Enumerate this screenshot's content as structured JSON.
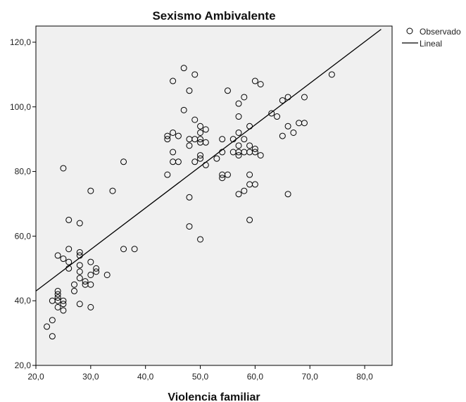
{
  "chart_data": {
    "type": "scatter",
    "title": "Sexismo Ambivalente",
    "xlabel": "Violencia familiar",
    "ylabel": "",
    "xlim": [
      20,
      85
    ],
    "ylim": [
      20,
      125
    ],
    "xticks": [
      "20,0",
      "30,0",
      "40,0",
      "50,0",
      "60,0",
      "70,0",
      "80,0"
    ],
    "xtick_values": [
      20,
      30,
      40,
      50,
      60,
      70,
      80
    ],
    "yticks": [
      "20,0",
      "40,0",
      "60,0",
      "80,0",
      "100,0",
      "120,0"
    ],
    "ytick_values": [
      20,
      40,
      60,
      80,
      100,
      120
    ],
    "grid": false,
    "legend": {
      "placement": "top-right",
      "entries": [
        {
          "label": "Observado",
          "marker": "circle"
        },
        {
          "label": "Lineal",
          "marker": "line"
        }
      ]
    },
    "colors": {
      "plot_background": "#f0f0f0",
      "marker": "#000000",
      "line": "#000000"
    },
    "series": [
      {
        "name": "Observado",
        "kind": "scatter",
        "points": [
          [
            22,
            32
          ],
          [
            23,
            29
          ],
          [
            23,
            34
          ],
          [
            23,
            40
          ],
          [
            24,
            38
          ],
          [
            24,
            40
          ],
          [
            24,
            41
          ],
          [
            24,
            42
          ],
          [
            24,
            43
          ],
          [
            24,
            54
          ],
          [
            25,
            37
          ],
          [
            25,
            39
          ],
          [
            25,
            40
          ],
          [
            25,
            53
          ],
          [
            25,
            81
          ],
          [
            26,
            50
          ],
          [
            26,
            52
          ],
          [
            26,
            56
          ],
          [
            26,
            65
          ],
          [
            27,
            43
          ],
          [
            27,
            45
          ],
          [
            28,
            39
          ],
          [
            28,
            47
          ],
          [
            28,
            49
          ],
          [
            28,
            51
          ],
          [
            28,
            54
          ],
          [
            28,
            55
          ],
          [
            28,
            64
          ],
          [
            29,
            45
          ],
          [
            29,
            46
          ],
          [
            30,
            38
          ],
          [
            30,
            45
          ],
          [
            30,
            48
          ],
          [
            30,
            52
          ],
          [
            30,
            74
          ],
          [
            31,
            49
          ],
          [
            31,
            50
          ],
          [
            33,
            48
          ],
          [
            34,
            74
          ],
          [
            36,
            56
          ],
          [
            36,
            83
          ],
          [
            38,
            56
          ],
          [
            44,
            79
          ],
          [
            44,
            90
          ],
          [
            44,
            91
          ],
          [
            45,
            83
          ],
          [
            45,
            86
          ],
          [
            45,
            92
          ],
          [
            45,
            108
          ],
          [
            46,
            83
          ],
          [
            46,
            91
          ],
          [
            47,
            99
          ],
          [
            47,
            112
          ],
          [
            48,
            63
          ],
          [
            48,
            72
          ],
          [
            48,
            88
          ],
          [
            48,
            90
          ],
          [
            48,
            105
          ],
          [
            49,
            83
          ],
          [
            49,
            90
          ],
          [
            49,
            96
          ],
          [
            49,
            110
          ],
          [
            50,
            59
          ],
          [
            50,
            84
          ],
          [
            50,
            85
          ],
          [
            50,
            89
          ],
          [
            50,
            90
          ],
          [
            50,
            92
          ],
          [
            50,
            94
          ],
          [
            51,
            82
          ],
          [
            51,
            89
          ],
          [
            51,
            93
          ],
          [
            53,
            84
          ],
          [
            54,
            78
          ],
          [
            54,
            79
          ],
          [
            54,
            86
          ],
          [
            54,
            90
          ],
          [
            55,
            79
          ],
          [
            55,
            105
          ],
          [
            56,
            86
          ],
          [
            56,
            90
          ],
          [
            57,
            73
          ],
          [
            57,
            85
          ],
          [
            57,
            86
          ],
          [
            57,
            88
          ],
          [
            57,
            92
          ],
          [
            57,
            97
          ],
          [
            57,
            101
          ],
          [
            58,
            74
          ],
          [
            58,
            86
          ],
          [
            58,
            90
          ],
          [
            58,
            103
          ],
          [
            59,
            65
          ],
          [
            59,
            76
          ],
          [
            59,
            79
          ],
          [
            59,
            86
          ],
          [
            59,
            88
          ],
          [
            59,
            94
          ],
          [
            60,
            76
          ],
          [
            60,
            86
          ],
          [
            60,
            87
          ],
          [
            60,
            108
          ],
          [
            61,
            85
          ],
          [
            61,
            107
          ],
          [
            63,
            98
          ],
          [
            64,
            97
          ],
          [
            65,
            91
          ],
          [
            65,
            102
          ],
          [
            66,
            73
          ],
          [
            66,
            94
          ],
          [
            66,
            103
          ],
          [
            67,
            92
          ],
          [
            68,
            95
          ],
          [
            69,
            95
          ],
          [
            69,
            103
          ],
          [
            74,
            110
          ]
        ]
      },
      {
        "name": "Lineal",
        "kind": "line",
        "points": [
          [
            20,
            43
          ],
          [
            83,
            124
          ]
        ]
      }
    ]
  }
}
